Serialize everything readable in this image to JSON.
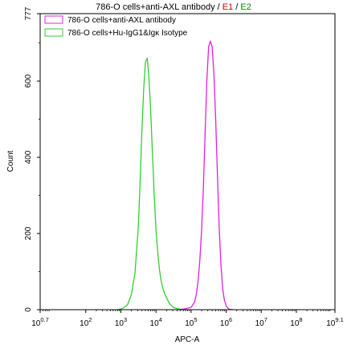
{
  "header": {
    "title_main": "786-O cells+anti-AXL antibody",
    "title_sep1": " / ",
    "title_e1": "E1",
    "title_sep2": " / ",
    "title_e2": "E2"
  },
  "chart_data": {
    "type": "line",
    "title": "786-O cells+anti-AXL antibody / E1 / E2",
    "xlabel": "APC-A",
    "ylabel": "Count",
    "x_scale": "log",
    "xlim": [
      0.7,
      9.1
    ],
    "ylim": [
      0,
      777
    ],
    "x_ticks": [
      {
        "value": 0.7,
        "base": "10",
        "exp": "0.7"
      },
      {
        "value": 2,
        "base": "10",
        "exp": "2"
      },
      {
        "value": 3,
        "base": "10",
        "exp": "3"
      },
      {
        "value": 4,
        "base": "10",
        "exp": "4"
      },
      {
        "value": 5,
        "base": "10",
        "exp": "5"
      },
      {
        "value": 6,
        "base": "10",
        "exp": "6"
      },
      {
        "value": 7,
        "base": "10",
        "exp": "7"
      },
      {
        "value": 8,
        "base": "10",
        "exp": "8"
      },
      {
        "value": 9.1,
        "base": "10",
        "exp": "9.1"
      }
    ],
    "y_ticks": [
      {
        "value": 0,
        "label": "0"
      },
      {
        "value": 200,
        "label": "200"
      },
      {
        "value": 400,
        "label": "400"
      },
      {
        "value": 600,
        "label": "600"
      },
      {
        "value": 777,
        "label": "777"
      }
    ],
    "legend_position": "top-left",
    "series": [
      {
        "name": "786-O cells+anti-AXL antibody",
        "color": "#e020e0",
        "x": [
          4.6,
          4.8,
          5.0,
          5.1,
          5.15,
          5.2,
          5.25,
          5.3,
          5.35,
          5.4,
          5.45,
          5.5,
          5.55,
          5.6,
          5.65,
          5.7,
          5.75,
          5.8,
          5.85,
          5.9,
          5.95,
          6.0,
          6.05,
          6.1,
          6.2
        ],
        "y": [
          0,
          2,
          6,
          20,
          40,
          75,
          130,
          210,
          320,
          460,
          600,
          690,
          705,
          690,
          620,
          500,
          360,
          220,
          120,
          55,
          25,
          10,
          4,
          1,
          0
        ]
      },
      {
        "name": "786-O cells+Hu-IgG1&Igκ Isotype",
        "color": "#33cc33",
        "x": [
          2.9,
          3.0,
          3.1,
          3.2,
          3.3,
          3.4,
          3.5,
          3.55,
          3.6,
          3.65,
          3.7,
          3.75,
          3.8,
          3.85,
          3.9,
          3.95,
          4.0,
          4.05,
          4.1,
          4.15,
          4.2,
          4.25,
          4.3,
          4.35,
          4.4,
          4.5,
          4.6,
          4.7,
          4.8
        ],
        "y": [
          0,
          2,
          6,
          15,
          40,
          95,
          220,
          340,
          470,
          580,
          650,
          660,
          610,
          520,
          410,
          300,
          210,
          150,
          105,
          75,
          55,
          42,
          32,
          22,
          14,
          6,
          3,
          1,
          0
        ]
      }
    ]
  }
}
